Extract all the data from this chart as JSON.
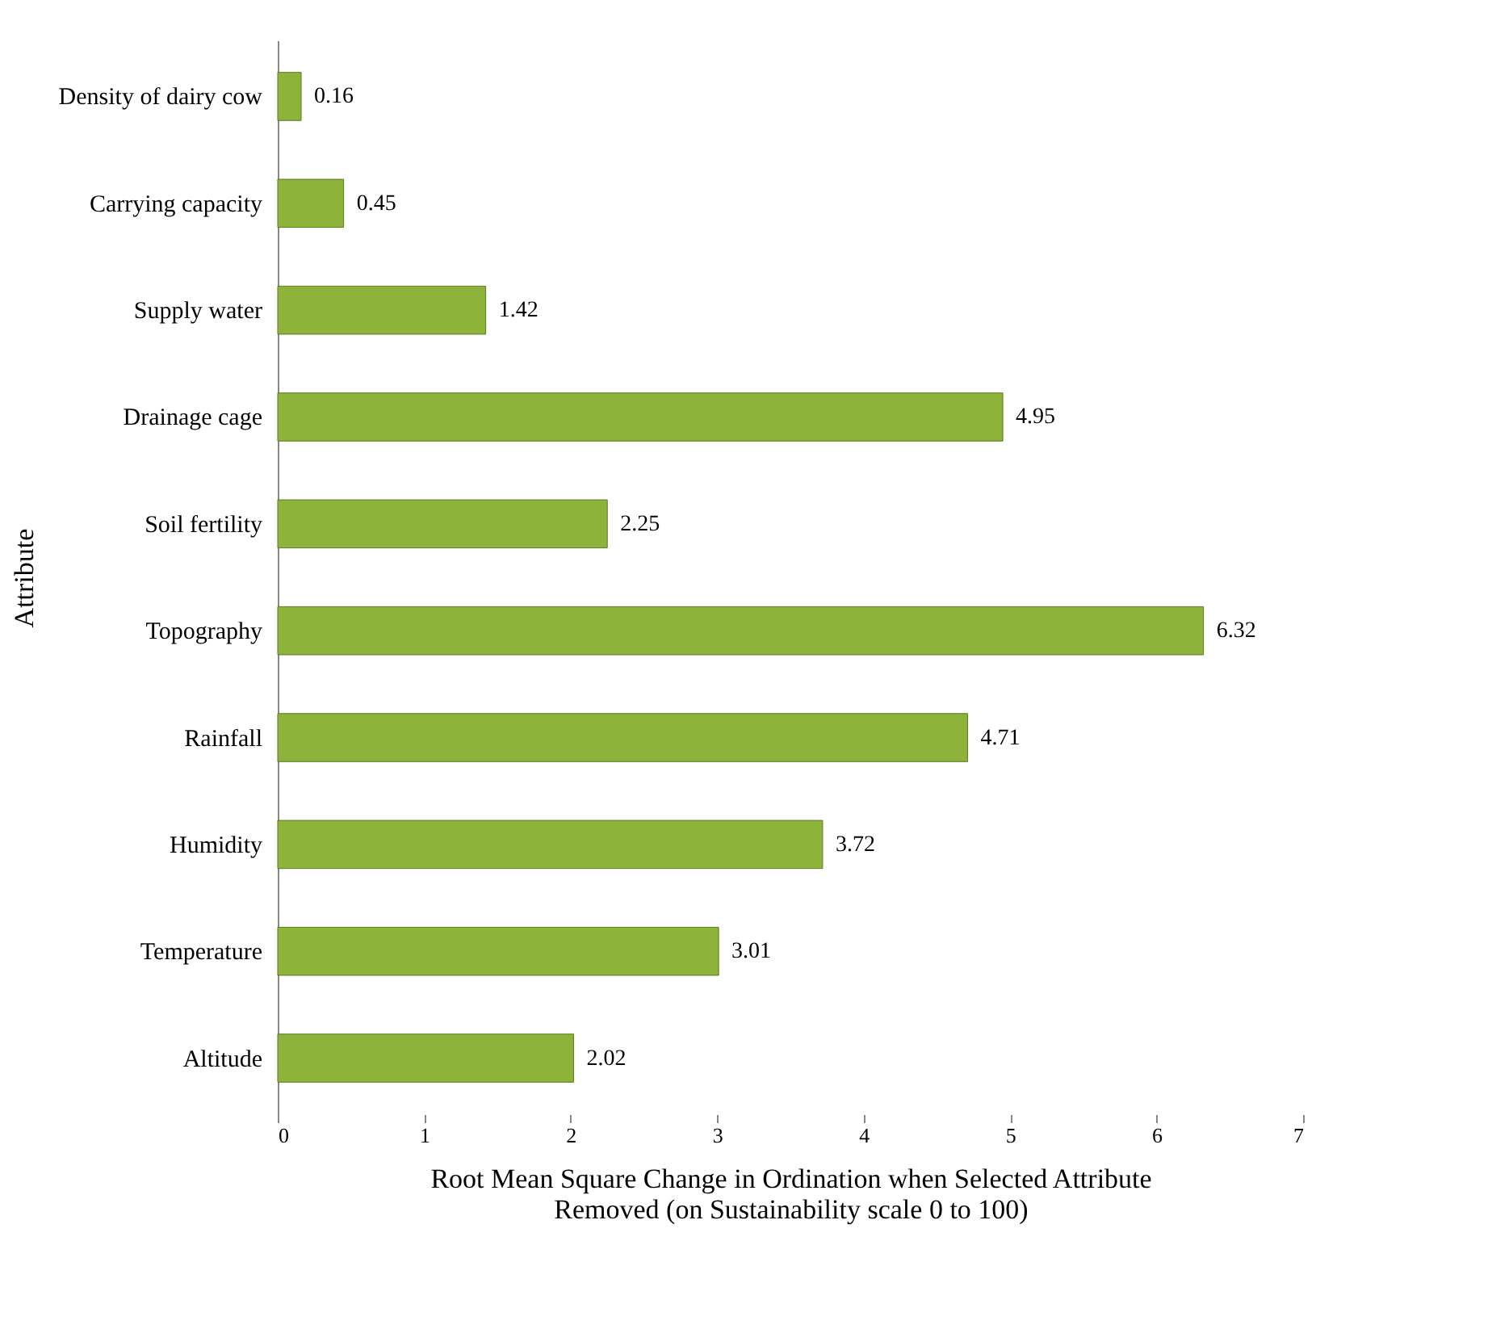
{
  "chart_data": {
    "type": "bar",
    "orientation": "horizontal",
    "xlabel": "Root Mean Square Change in Ordination when Selected Attribute Removed (on Sustainability scale 0 to 100)",
    "ylabel": "Attribute",
    "categories": [
      "Density of dairy cow",
      "Carrying capacity",
      "Supply water",
      "Drainage cage",
      "Soil fertility",
      "Topography",
      "Rainfall",
      "Humidity",
      "Temperature",
      "Altitude"
    ],
    "values": [
      0.16,
      0.45,
      1.42,
      4.95,
      2.25,
      6.32,
      4.71,
      3.72,
      3.01,
      2.02
    ],
    "color": "#8db33a",
    "xlim": [
      0,
      7
    ],
    "xticks": [
      0,
      1,
      2,
      3,
      4,
      5,
      6,
      7
    ],
    "data_labels": true,
    "grid": false
  }
}
